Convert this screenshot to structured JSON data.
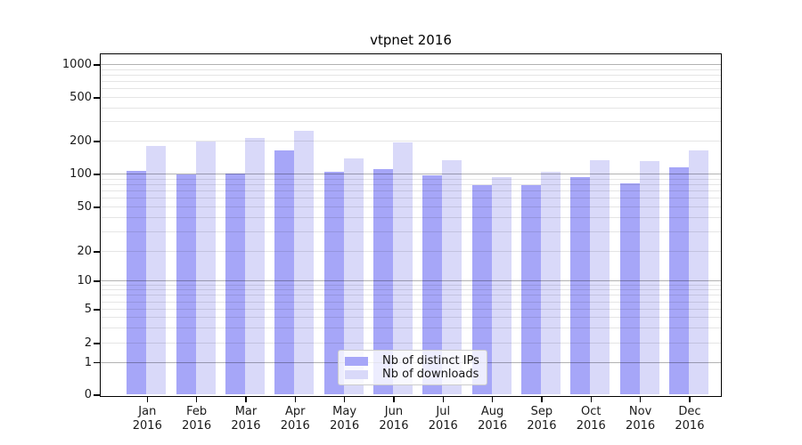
{
  "chart_data": {
    "type": "bar",
    "title": "vtpnet 2016",
    "categories": [
      "Jan",
      "Feb",
      "Mar",
      "Apr",
      "May",
      "Jun",
      "Jul",
      "Aug",
      "Sep",
      "Oct",
      "Nov",
      "Dec"
    ],
    "category_sublabel": "2016",
    "series": [
      {
        "name": "Nb of distinct IPs",
        "color": "#a6a6f8",
        "values": [
          105,
          99,
          100,
          162,
          103,
          110,
          97,
          79,
          78,
          92,
          82,
          115
        ]
      },
      {
        "name": "Nb of downloads",
        "color": "#d9d9f9",
        "values": [
          180,
          198,
          210,
          245,
          137,
          192,
          132,
          93,
          103,
          132,
          129,
          162
        ]
      }
    ],
    "yscale": "symlog",
    "yticks": [
      0,
      1,
      2,
      5,
      10,
      20,
      50,
      100,
      200,
      500,
      1000
    ],
    "ylim": [
      0,
      1250
    ],
    "xlabel": "",
    "ylabel": "",
    "grid": true,
    "legend_position": "lower center"
  }
}
